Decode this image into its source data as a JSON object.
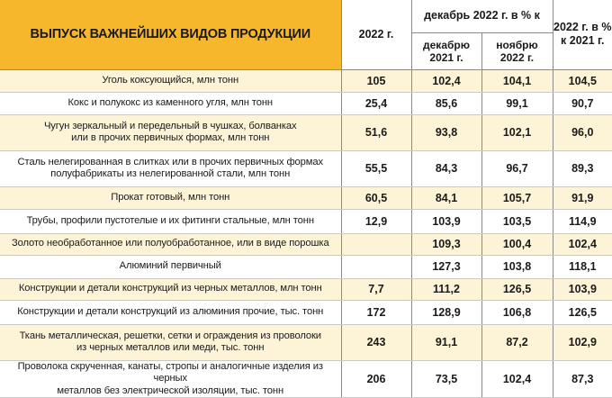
{
  "header": {
    "title": "ВЫПУСК ВАЖНЕЙШИХ ВИДОВ ПРОДУКЦИИ",
    "col_2022": "2022 г.",
    "col_dec_group": "декабрь 2022 г. в % к",
    "col_dec_2021_line1": "декабрю",
    "col_dec_2021_line2": "2021 г.",
    "col_nov_line1": "ноябрю",
    "col_nov_line2": "2022 г.",
    "col_2022_vs_2021_line1": "2022 г. в %",
    "col_2022_vs_2021_line2": "к 2021 г."
  },
  "rows": [
    {
      "name_line1": "Уголь коксующийся, млн тонн",
      "name_line2": "",
      "v2022": "105",
      "dec2021": "102,4",
      "nov2022": "104,1",
      "y2021": "104,5"
    },
    {
      "name_line1": "Кокс и полукокс из каменного угля, млн тонн",
      "name_line2": "",
      "v2022": "25,4",
      "dec2021": "85,6",
      "nov2022": "99,1",
      "y2021": "90,7"
    },
    {
      "name_line1": "Чугун зеркальный и передельный в чушках, болванках",
      "name_line2": "или в прочих первичных формах, млн тонн",
      "v2022": "51,6",
      "dec2021": "93,8",
      "nov2022": "102,1",
      "y2021": "96,0"
    },
    {
      "name_line1": "Сталь нелегированная в слитках или в прочих  первичных формах",
      "name_line2": "полуфабрикаты из нелегированной стали, млн тонн",
      "v2022": "55,5",
      "dec2021": "84,3",
      "nov2022": "96,7",
      "y2021": "89,3"
    },
    {
      "name_line1": "Прокат готовый, млн тонн",
      "name_line2": "",
      "v2022": "60,5",
      "dec2021": "84,1",
      "nov2022": "105,7",
      "y2021": "91,9"
    },
    {
      "name_line1": "Трубы, профили пустотелые и их фитинги стальные, млн тонн",
      "name_line2": "",
      "v2022": "12,9",
      "dec2021": "103,9",
      "nov2022": "103,5",
      "y2021": "114,9"
    },
    {
      "name_line1": "Золото необработанное или полуобработанное, или в виде порошка",
      "name_line2": "",
      "v2022": "",
      "dec2021": "109,3",
      "nov2022": "100,4",
      "y2021": "102,4"
    },
    {
      "name_line1": "Алюминий первичный",
      "name_line2": "",
      "v2022": "",
      "dec2021": "127,3",
      "nov2022": "103,8",
      "y2021": "118,1"
    },
    {
      "name_line1": "Конструкции и детали конструкций из черных металлов, млн тонн",
      "name_line2": "",
      "v2022": "7,7",
      "dec2021": "111,2",
      "nov2022": "126,5",
      "y2021": "103,9"
    },
    {
      "name_line1": "Конструкции и детали конструкций из алюминия прочие, тыс. тонн",
      "name_line2": "",
      "v2022": "172",
      "dec2021": "128,9",
      "nov2022": "106,8",
      "y2021": "126,5"
    },
    {
      "name_line1": "Ткань металлическая, решетки, сетки и ограждения из проволоки",
      "name_line2": "из черных металлов или меди, тыс. тонн",
      "v2022": "243",
      "dec2021": "91,1",
      "nov2022": "87,2",
      "y2021": "102,9"
    },
    {
      "name_line1": "Проволока скрученная, канаты, стропы и аналогичные изделия из черных",
      "name_line2": "металлов без электрической изоляции, тыс. тонн",
      "v2022": "206",
      "dec2021": "73,5",
      "nov2022": "102,4",
      "y2021": "87,3"
    }
  ],
  "colors": {
    "header_accent": "#f6b72c",
    "row_tint": "#fdf3d6"
  }
}
